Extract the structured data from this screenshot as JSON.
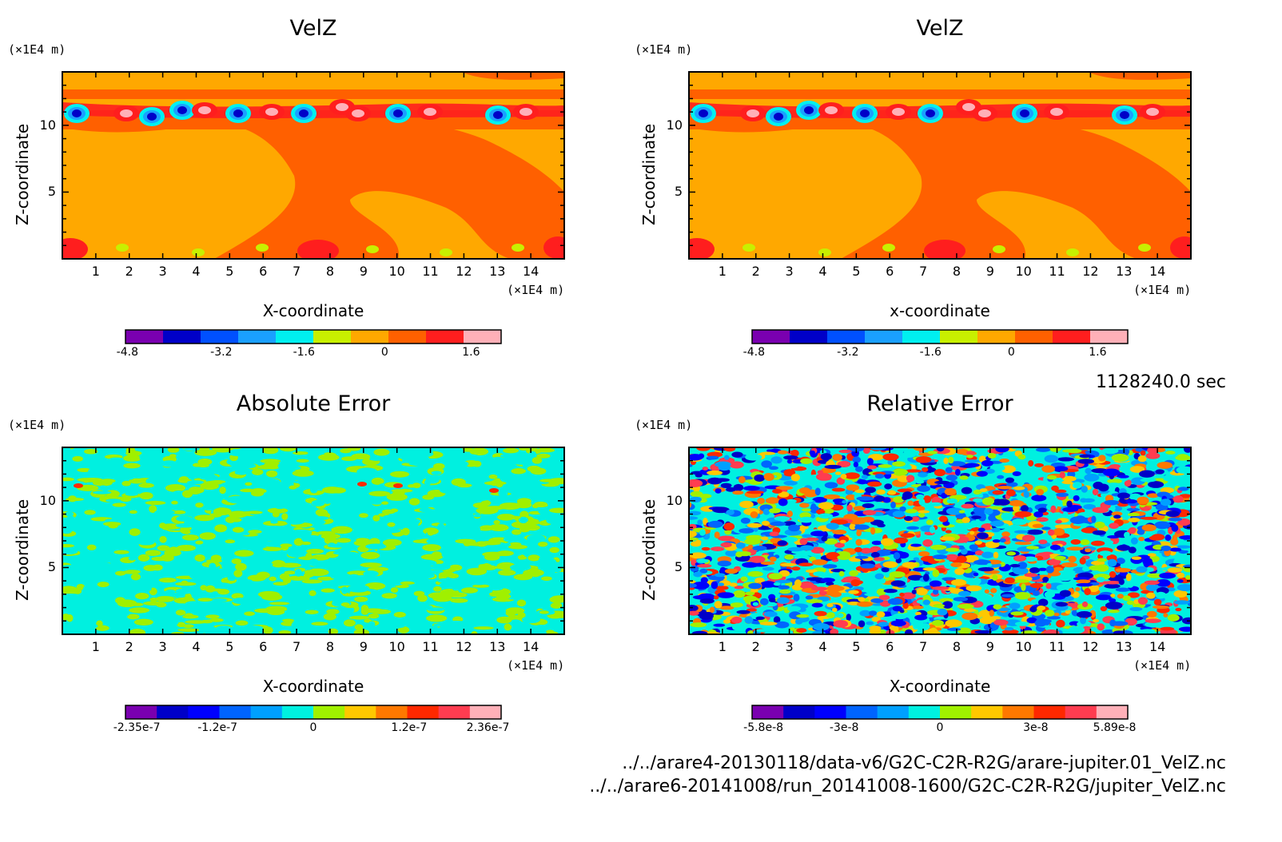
{
  "time_label": "1128240.0 sec",
  "files": [
    "../../arare4-20130118/data-v6/G2C-C2R-R2G/arare-jupiter.01_VelZ.nc",
    "../../arare6-20141008/run_20141008-1600/G2C-C2R-R2G/jupiter_VelZ.nc"
  ],
  "chart_data": [
    {
      "type": "heatmap",
      "title": "VelZ",
      "xlabel": "X-coordinate",
      "ylabel": "Z-coordinate",
      "x_unit": "(×1E4 m)",
      "y_unit": "(×1E4 m)",
      "xlim": [
        0,
        15
      ],
      "ylim": [
        0,
        14
      ],
      "x_ticks": [
        "1",
        "2",
        "3",
        "4",
        "5",
        "6",
        "7",
        "8",
        "9",
        "10",
        "11",
        "12",
        "13",
        "14"
      ],
      "y_ticks": [
        "5",
        "10"
      ],
      "colorbar_labels": [
        "-4.8",
        "-3.2",
        "-1.6",
        "0",
        "1.6"
      ],
      "field": "velz"
    },
    {
      "type": "heatmap",
      "title": "VelZ",
      "xlabel": "x-coordinate",
      "ylabel": "Z-coordinate",
      "x_unit": "(×1E4 m)",
      "y_unit": "(×1E4 m)",
      "xlim": [
        0,
        15
      ],
      "ylim": [
        0,
        14
      ],
      "x_ticks": [
        "1",
        "2",
        "3",
        "4",
        "5",
        "6",
        "7",
        "8",
        "9",
        "10",
        "11",
        "12",
        "13",
        "14"
      ],
      "y_ticks": [
        "5",
        "10"
      ],
      "colorbar_labels": [
        "-4.8",
        "-3.2",
        "-1.6",
        "0",
        "1.6"
      ],
      "field": "velz"
    },
    {
      "type": "heatmap",
      "title": "Absolute Error",
      "xlabel": "X-coordinate",
      "ylabel": "Z-coordinate",
      "x_unit": "(×1E4 m)",
      "y_unit": "(×1E4 m)",
      "xlim": [
        0,
        15
      ],
      "ylim": [
        0,
        14
      ],
      "x_ticks": [
        "1",
        "2",
        "3",
        "4",
        "5",
        "6",
        "7",
        "8",
        "9",
        "10",
        "11",
        "12",
        "13",
        "14"
      ],
      "y_ticks": [
        "5",
        "10"
      ],
      "colorbar_labels": [
        "-2.35e-7",
        "-1.2e-7",
        "0",
        "1.2e-7",
        "2.36e-7"
      ],
      "field": "abs"
    },
    {
      "type": "heatmap",
      "title": "Relative Error",
      "xlabel": "X-coordinate",
      "ylabel": "Z-coordinate",
      "x_unit": "(×1E4 m)",
      "y_unit": "(×1E4 m)",
      "xlim": [
        0,
        15
      ],
      "ylim": [
        0,
        14
      ],
      "x_ticks": [
        "1",
        "2",
        "3",
        "4",
        "5",
        "6",
        "7",
        "8",
        "9",
        "10",
        "11",
        "12",
        "13",
        "14"
      ],
      "y_ticks": [
        "5",
        "10"
      ],
      "colorbar_labels": [
        "-5.8e-8",
        "-3e-8",
        "0",
        "3e-8",
        "5.89e-8"
      ],
      "field": "rel"
    }
  ],
  "colors": {
    "velz_scale": [
      "#7a00b0",
      "#0000c8",
      "#0050ff",
      "#1aa0ff",
      "#00f0f0",
      "#c8f000",
      "#ffa800",
      "#ff6000",
      "#ff1e1e",
      "#ffb0b8"
    ],
    "err_scale": [
      "#7a00b0",
      "#0000c8",
      "#0000ff",
      "#0064ff",
      "#00a0ff",
      "#00f0e0",
      "#a0f000",
      "#ffc800",
      "#ff7800",
      "#ff2800",
      "#ff3c50",
      "#ffb0b8"
    ]
  }
}
